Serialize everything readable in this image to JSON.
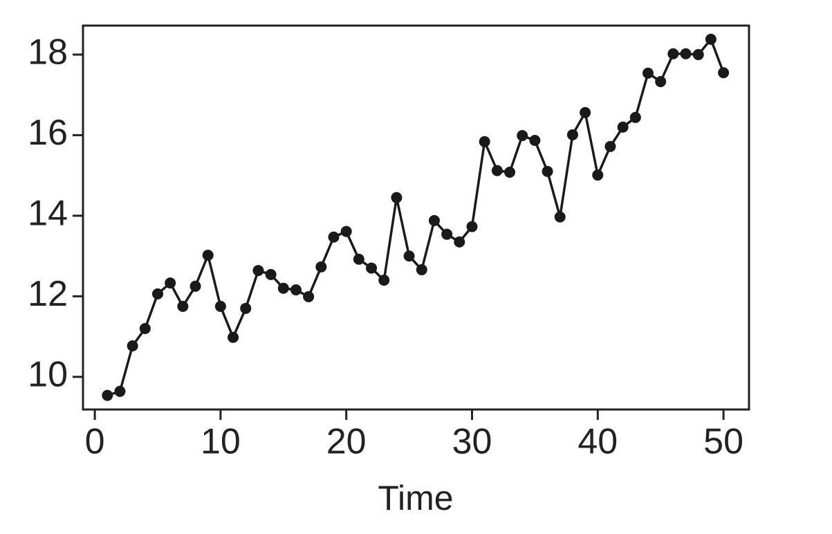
{
  "chart_data": {
    "type": "line",
    "xlabel": "Time",
    "x": [
      1,
      2,
      3,
      4,
      5,
      6,
      7,
      8,
      9,
      10,
      11,
      12,
      13,
      14,
      15,
      16,
      17,
      18,
      19,
      20,
      21,
      22,
      23,
      24,
      25,
      26,
      27,
      28,
      29,
      30,
      31,
      32,
      33,
      34,
      35,
      36,
      37,
      38,
      39,
      40,
      41,
      42,
      43,
      44,
      45,
      46,
      47,
      48,
      49,
      50
    ],
    "values": [
      9.54,
      9.64,
      10.77,
      11.2,
      12.06,
      12.33,
      11.75,
      12.25,
      13.02,
      11.75,
      10.98,
      11.7,
      12.64,
      12.54,
      12.2,
      12.16,
      11.99,
      12.73,
      13.47,
      13.61,
      12.92,
      12.7,
      12.4,
      14.45,
      13.0,
      12.66,
      13.88,
      13.54,
      13.35,
      13.73,
      15.84,
      15.12,
      15.08,
      15.99,
      15.87,
      15.1,
      13.97,
      16.01,
      16.56,
      15.01,
      15.72,
      16.2,
      16.44,
      17.54,
      17.33,
      18.02,
      18.02,
      18.0,
      18.38,
      17.55
    ],
    "color": "#1a1a1a",
    "markers": true,
    "xlim": [
      -0.94,
      52.03
    ],
    "xticks": [
      0,
      10,
      20,
      30,
      40,
      50
    ],
    "ylim": [
      9.19,
      18.72
    ],
    "yticks": [
      10,
      12,
      14,
      16,
      18
    ]
  }
}
